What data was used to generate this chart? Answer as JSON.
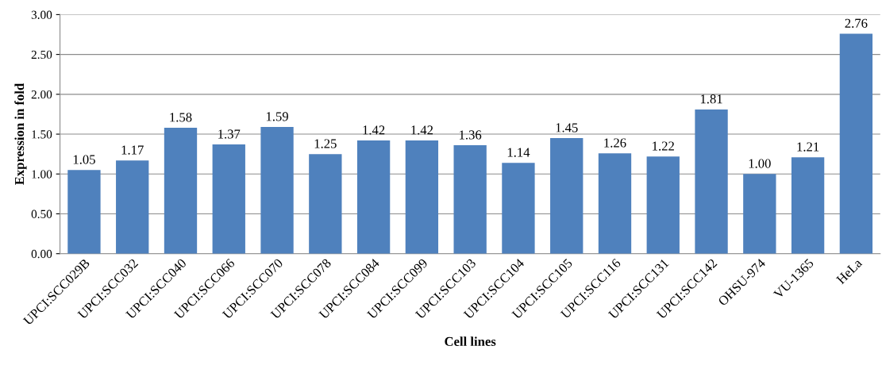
{
  "chart_data": {
    "type": "bar",
    "xlabel": "Cell lines",
    "ylabel": "Expression in fold",
    "categories": [
      "UPCI:SCC029B",
      "UPCI:SCC032",
      "UPCI:SCC040",
      "UPCI:SCC066",
      "UPCI:SCC070",
      "UPCI:SCC078",
      "UPCI:SCC084",
      "UPCI:SCC099",
      "UPCI:SCC103",
      "UPCI:SCC104",
      "UPCI:SCC105",
      "UPCI:SCC116",
      "UPCI:SCC131",
      "UPCI:SCC142",
      "OHSU-974",
      "VU-1365",
      "HeLa"
    ],
    "values": [
      1.05,
      1.17,
      1.58,
      1.37,
      1.59,
      1.25,
      1.42,
      1.42,
      1.36,
      1.14,
      1.45,
      1.26,
      1.22,
      1.81,
      1.0,
      1.21,
      2.76
    ],
    "value_labels": [
      "1.05",
      "1.17",
      "1.58",
      "1.37",
      "1.59",
      "1.25",
      "1.42",
      "1.42",
      "1.36",
      "1.14",
      "1.45",
      "1.26",
      "1.22",
      "1.81",
      "1.00",
      "1.21",
      "2.76"
    ],
    "color": "#4f81bd",
    "ylim": [
      0,
      3
    ],
    "yticks": [
      {
        "value": 0,
        "label": "0.00"
      },
      {
        "value": 0.5,
        "label": "0.50"
      },
      {
        "value": 1,
        "label": "1.00"
      },
      {
        "value": 1.5,
        "label": "1.50"
      },
      {
        "value": 2,
        "label": "2.00"
      },
      {
        "value": 2.5,
        "label": "2.50"
      },
      {
        "value": 3,
        "label": "3.00"
      }
    ],
    "grid": "y"
  }
}
